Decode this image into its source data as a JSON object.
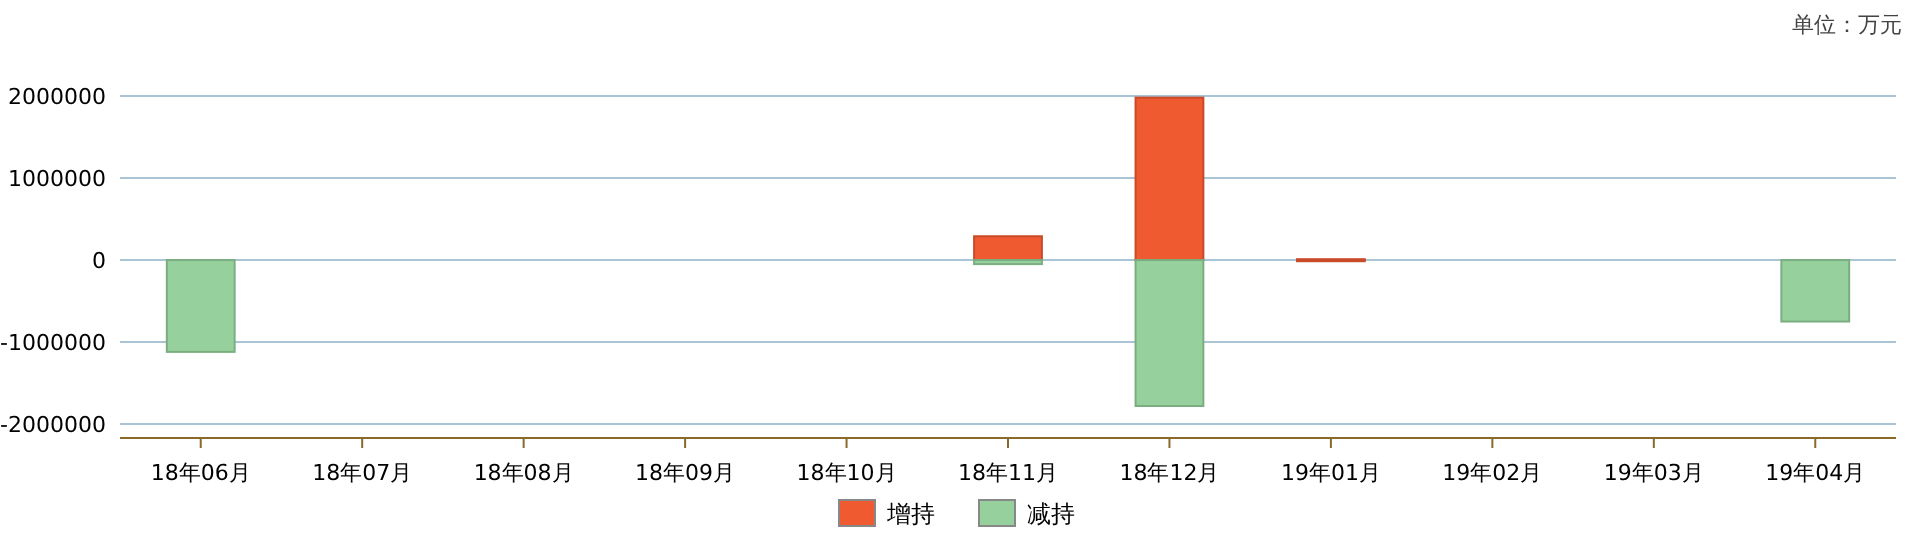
{
  "chart_data": {
    "type": "bar",
    "stacked": true,
    "categories": [
      "18年06月",
      "18年07月",
      "18年08月",
      "18年09月",
      "18年10月",
      "18年11月",
      "18年12月",
      "19年01月",
      "19年02月",
      "19年03月",
      "19年04月"
    ],
    "series": [
      {
        "name": "增持",
        "color": "#f05a30",
        "values": [
          null,
          null,
          null,
          null,
          null,
          290000,
          1980000,
          10000,
          null,
          null,
          null
        ]
      },
      {
        "name": "减持",
        "color": "#96d09c",
        "values": [
          -1120000,
          null,
          null,
          null,
          null,
          -50000,
          -1780000,
          null,
          null,
          null,
          -750000
        ]
      }
    ],
    "ylim": [
      -2170000,
      2000000
    ],
    "yticks": [
      -2000000,
      -1000000,
      0,
      1000000,
      2000000
    ],
    "grid": "y",
    "legend": "bottom",
    "annotations": [
      "单位：万元"
    ]
  }
}
